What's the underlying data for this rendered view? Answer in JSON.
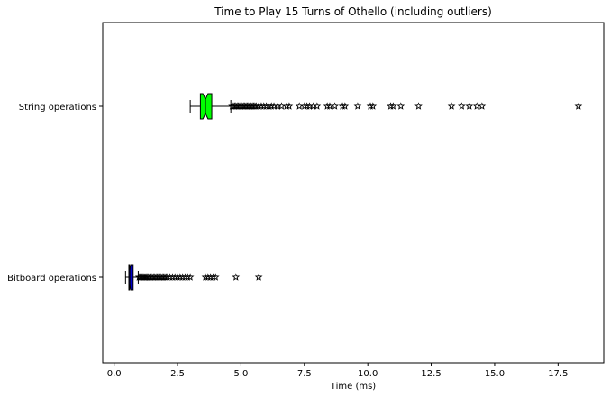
{
  "chart_data": {
    "type": "boxplot",
    "orientation": "horizontal",
    "title": "Time to Play 15 Turns of Othello (including outliers)",
    "xlabel": "Time (ms)",
    "ylabel": "",
    "xlim": [
      -0.45,
      19.3
    ],
    "x_ticks": [
      0.0,
      2.5,
      5.0,
      7.5,
      10.0,
      12.5,
      15.0,
      17.5
    ],
    "x_tick_labels": [
      "0.0",
      "2.5",
      "5.0",
      "7.5",
      "10.0",
      "12.5",
      "15.0",
      "17.5"
    ],
    "grid": false,
    "notched": true,
    "outlier_marker": "star",
    "series": [
      {
        "name": "String operations",
        "color": "#00ff00",
        "whisker_low": 3.0,
        "q1": 3.4,
        "median": 3.6,
        "q3": 3.85,
        "notch_low": 3.5,
        "notch_high": 3.7,
        "whisker_high": 4.6,
        "outliers": [
          4.65,
          4.7,
          4.75,
          4.8,
          4.85,
          4.9,
          4.95,
          5.0,
          5.05,
          5.1,
          5.15,
          5.2,
          5.25,
          5.3,
          5.35,
          5.4,
          5.45,
          5.5,
          5.55,
          5.6,
          5.7,
          5.8,
          5.9,
          6.0,
          6.1,
          6.2,
          6.3,
          6.45,
          6.6,
          6.8,
          6.9,
          7.3,
          7.5,
          7.6,
          7.7,
          7.85,
          8.0,
          8.4,
          8.5,
          8.7,
          9.0,
          9.1,
          9.6,
          10.1,
          10.2,
          10.9,
          11.0,
          11.3,
          12.0,
          13.3,
          13.7,
          14.0,
          14.3,
          14.5,
          18.3
        ]
      },
      {
        "name": "Bitboard operations",
        "color": "#0000cd",
        "whisker_low": 0.45,
        "q1": 0.58,
        "median": 0.62,
        "q3": 0.75,
        "notch_low": 0.6,
        "notch_high": 0.65,
        "whisker_high": 0.95,
        "outliers": [
          0.98,
          1.02,
          1.06,
          1.1,
          1.14,
          1.18,
          1.22,
          1.26,
          1.3,
          1.35,
          1.4,
          1.45,
          1.5,
          1.55,
          1.6,
          1.65,
          1.7,
          1.75,
          1.8,
          1.85,
          1.9,
          1.95,
          2.0,
          2.05,
          2.1,
          2.2,
          2.3,
          2.4,
          2.5,
          2.6,
          2.7,
          2.8,
          2.9,
          3.0,
          3.6,
          3.7,
          3.8,
          3.9,
          4.0,
          4.8,
          5.7
        ]
      }
    ]
  }
}
